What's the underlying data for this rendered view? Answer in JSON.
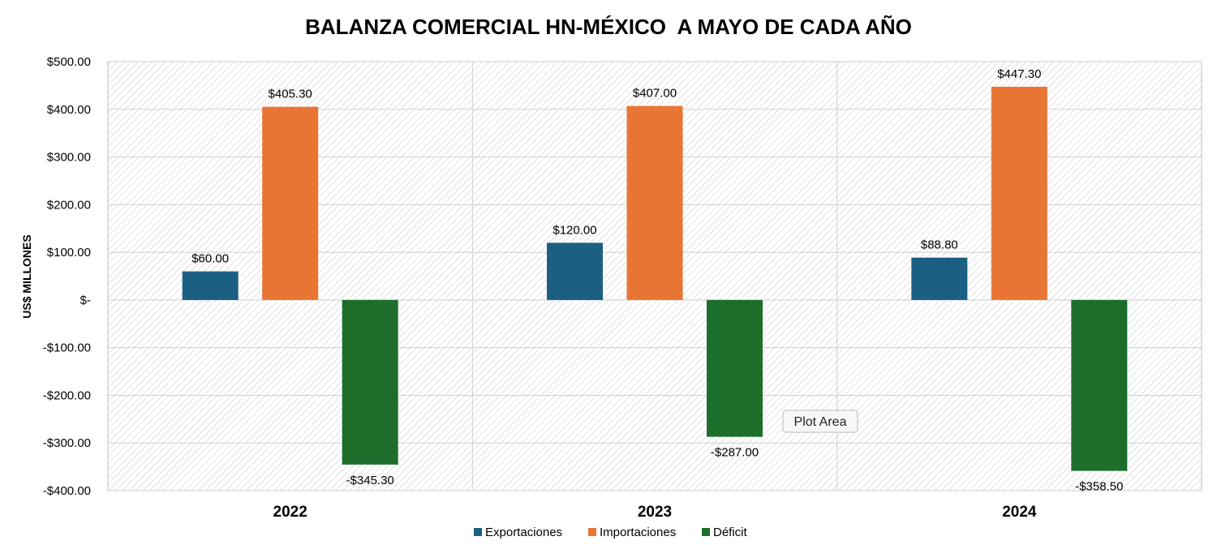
{
  "chart_data": {
    "type": "bar",
    "title": "BALANZA COMERCIAL HN-MÉXICO  A MAYO DE CADA AÑO",
    "ylabel": "US$ MILLONES",
    "xlabel": "",
    "categories": [
      "2022",
      "2023",
      "2024"
    ],
    "series": [
      {
        "name": "Exportaciones",
        "color": "#1b6083",
        "values": [
          60.0,
          120.0,
          88.8
        ],
        "labels": [
          "$60.00",
          "$120.00",
          "$88.80"
        ]
      },
      {
        "name": "Importaciones",
        "color": "#e97534",
        "values": [
          405.3,
          407.0,
          447.3
        ],
        "labels": [
          "$405.30",
          "$407.00",
          "$447.30"
        ]
      },
      {
        "name": "Déficit",
        "color": "#1c6e2a",
        "values": [
          -345.3,
          -287.0,
          -358.5
        ],
        "labels": [
          "-$345.30",
          "-$287.00",
          "-$358.50"
        ]
      }
    ],
    "ylim": [
      -400,
      500
    ],
    "yticks": [
      500,
      400,
      300,
      200,
      100,
      0,
      -100,
      -200,
      -300,
      -400
    ],
    "ytick_labels": [
      "$500.00",
      "$400.00",
      "$300.00",
      "$200.00",
      "$100.00",
      "$-",
      "-$100.00",
      "-$200.00",
      "-$300.00",
      "-$400.00"
    ],
    "grid": true,
    "legend_position": "bottom"
  },
  "tooltip": {
    "text": "Plot Area"
  }
}
